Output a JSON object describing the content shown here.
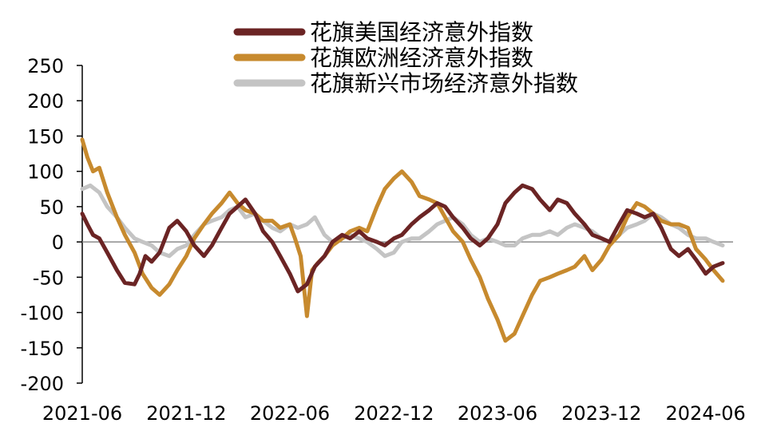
{
  "chart_data": {
    "type": "line",
    "title": "",
    "xlabel": "",
    "ylabel": "",
    "ylim": [
      -200,
      250
    ],
    "yticks": [
      250,
      200,
      150,
      100,
      50,
      0,
      -50,
      -100,
      -150,
      -200
    ],
    "xlim": [
      "2021-06-01",
      "2024-07-15"
    ],
    "xticks": [
      "2021-06",
      "2021-12",
      "2022-06",
      "2022-12",
      "2023-06",
      "2023-12",
      "2024-06"
    ],
    "grid": false,
    "legend": "top-center",
    "series": [
      {
        "name": "花旗美国经济意外指数",
        "color": "#6b2424",
        "points": [
          [
            "2021-06-01",
            40
          ],
          [
            "2021-06-10",
            25
          ],
          [
            "2021-06-20",
            10
          ],
          [
            "2021-07-01",
            5
          ],
          [
            "2021-07-15",
            -15
          ],
          [
            "2021-08-01",
            -40
          ],
          [
            "2021-08-15",
            -58
          ],
          [
            "2021-09-01",
            -60
          ],
          [
            "2021-09-10",
            -45
          ],
          [
            "2021-09-20",
            -20
          ],
          [
            "2021-10-01",
            -28
          ],
          [
            "2021-10-15",
            -15
          ],
          [
            "2021-11-01",
            20
          ],
          [
            "2021-11-15",
            30
          ],
          [
            "2021-12-01",
            15
          ],
          [
            "2021-12-15",
            -5
          ],
          [
            "2022-01-01",
            -20
          ],
          [
            "2022-01-15",
            -5
          ],
          [
            "2022-02-01",
            20
          ],
          [
            "2022-02-15",
            40
          ],
          [
            "2022-03-01",
            50
          ],
          [
            "2022-03-15",
            60
          ],
          [
            "2022-04-01",
            40
          ],
          [
            "2022-04-15",
            15
          ],
          [
            "2022-05-01",
            0
          ],
          [
            "2022-05-15",
            -20
          ],
          [
            "2022-06-01",
            -45
          ],
          [
            "2022-06-15",
            -70
          ],
          [
            "2022-07-01",
            -60
          ],
          [
            "2022-07-15",
            -35
          ],
          [
            "2022-08-01",
            -20
          ],
          [
            "2022-08-15",
            0
          ],
          [
            "2022-09-01",
            10
          ],
          [
            "2022-09-15",
            5
          ],
          [
            "2022-10-01",
            15
          ],
          [
            "2022-10-15",
            5
          ],
          [
            "2022-11-01",
            0
          ],
          [
            "2022-11-15",
            -5
          ],
          [
            "2022-12-01",
            5
          ],
          [
            "2022-12-15",
            10
          ],
          [
            "2023-01-01",
            25
          ],
          [
            "2023-01-15",
            35
          ],
          [
            "2023-02-01",
            45
          ],
          [
            "2023-02-15",
            55
          ],
          [
            "2023-03-01",
            50
          ],
          [
            "2023-03-15",
            35
          ],
          [
            "2023-04-01",
            20
          ],
          [
            "2023-04-15",
            5
          ],
          [
            "2023-05-01",
            -5
          ],
          [
            "2023-05-15",
            5
          ],
          [
            "2023-06-01",
            25
          ],
          [
            "2023-06-15",
            55
          ],
          [
            "2023-07-01",
            70
          ],
          [
            "2023-07-15",
            80
          ],
          [
            "2023-08-01",
            75
          ],
          [
            "2023-08-15",
            60
          ],
          [
            "2023-09-01",
            45
          ],
          [
            "2023-09-15",
            60
          ],
          [
            "2023-10-01",
            55
          ],
          [
            "2023-10-15",
            40
          ],
          [
            "2023-11-01",
            25
          ],
          [
            "2023-11-15",
            10
          ],
          [
            "2023-12-01",
            5
          ],
          [
            "2023-12-15",
            0
          ],
          [
            "2024-01-01",
            25
          ],
          [
            "2024-01-15",
            45
          ],
          [
            "2024-02-01",
            40
          ],
          [
            "2024-02-15",
            35
          ],
          [
            "2024-03-01",
            40
          ],
          [
            "2024-03-15",
            20
          ],
          [
            "2024-04-01",
            -10
          ],
          [
            "2024-04-15",
            -20
          ],
          [
            "2024-05-01",
            -10
          ],
          [
            "2024-05-15",
            -25
          ],
          [
            "2024-06-01",
            -45
          ],
          [
            "2024-06-15",
            -35
          ],
          [
            "2024-07-01",
            -30
          ]
        ]
      },
      {
        "name": "花旗欧洲经济意外指数",
        "color": "#c78a2e",
        "points": [
          [
            "2021-06-01",
            145
          ],
          [
            "2021-06-10",
            120
          ],
          [
            "2021-06-20",
            100
          ],
          [
            "2021-07-01",
            105
          ],
          [
            "2021-07-15",
            70
          ],
          [
            "2021-08-01",
            35
          ],
          [
            "2021-08-15",
            10
          ],
          [
            "2021-09-01",
            -15
          ],
          [
            "2021-09-15",
            -45
          ],
          [
            "2021-10-01",
            -65
          ],
          [
            "2021-10-15",
            -75
          ],
          [
            "2021-11-01",
            -60
          ],
          [
            "2021-11-15",
            -40
          ],
          [
            "2021-12-01",
            -20
          ],
          [
            "2021-12-15",
            5
          ],
          [
            "2022-01-01",
            25
          ],
          [
            "2022-01-15",
            40
          ],
          [
            "2022-02-01",
            55
          ],
          [
            "2022-02-15",
            70
          ],
          [
            "2022-03-01",
            55
          ],
          [
            "2022-03-15",
            45
          ],
          [
            "2022-04-01",
            40
          ],
          [
            "2022-04-15",
            30
          ],
          [
            "2022-05-01",
            30
          ],
          [
            "2022-05-15",
            20
          ],
          [
            "2022-06-01",
            25
          ],
          [
            "2022-06-10",
            5
          ],
          [
            "2022-06-20",
            -20
          ],
          [
            "2022-07-01",
            -105
          ],
          [
            "2022-07-10",
            -40
          ],
          [
            "2022-07-20",
            -30
          ],
          [
            "2022-08-01",
            -20
          ],
          [
            "2022-08-15",
            -5
          ],
          [
            "2022-09-01",
            5
          ],
          [
            "2022-09-15",
            15
          ],
          [
            "2022-10-01",
            20
          ],
          [
            "2022-10-15",
            15
          ],
          [
            "2022-11-01",
            50
          ],
          [
            "2022-11-15",
            75
          ],
          [
            "2022-12-01",
            90
          ],
          [
            "2022-12-15",
            100
          ],
          [
            "2023-01-01",
            85
          ],
          [
            "2023-01-15",
            65
          ],
          [
            "2023-02-01",
            60
          ],
          [
            "2023-02-15",
            55
          ],
          [
            "2023-03-01",
            35
          ],
          [
            "2023-03-15",
            15
          ],
          [
            "2023-04-01",
            0
          ],
          [
            "2023-04-15",
            -25
          ],
          [
            "2023-05-01",
            -50
          ],
          [
            "2023-05-15",
            -80
          ],
          [
            "2023-06-01",
            -110
          ],
          [
            "2023-06-15",
            -140
          ],
          [
            "2023-07-01",
            -130
          ],
          [
            "2023-07-15",
            -105
          ],
          [
            "2023-08-01",
            -75
          ],
          [
            "2023-08-15",
            -55
          ],
          [
            "2023-09-01",
            -50
          ],
          [
            "2023-09-15",
            -45
          ],
          [
            "2023-10-01",
            -40
          ],
          [
            "2023-10-15",
            -35
          ],
          [
            "2023-11-01",
            -20
          ],
          [
            "2023-11-15",
            -40
          ],
          [
            "2023-12-01",
            -25
          ],
          [
            "2023-12-15",
            -5
          ],
          [
            "2024-01-01",
            10
          ],
          [
            "2024-01-15",
            35
          ],
          [
            "2024-02-01",
            55
          ],
          [
            "2024-02-15",
            50
          ],
          [
            "2024-03-01",
            40
          ],
          [
            "2024-03-15",
            30
          ],
          [
            "2024-04-01",
            25
          ],
          [
            "2024-04-15",
            25
          ],
          [
            "2024-05-01",
            20
          ],
          [
            "2024-05-15",
            -10
          ],
          [
            "2024-06-01",
            -25
          ],
          [
            "2024-06-15",
            -40
          ],
          [
            "2024-07-01",
            -55
          ]
        ]
      },
      {
        "name": "花旗新兴市场经济意外指数",
        "color": "#c4c4c4",
        "points": [
          [
            "2021-06-01",
            75
          ],
          [
            "2021-06-15",
            80
          ],
          [
            "2021-07-01",
            70
          ],
          [
            "2021-07-15",
            50
          ],
          [
            "2021-08-01",
            35
          ],
          [
            "2021-08-15",
            20
          ],
          [
            "2021-09-01",
            5
          ],
          [
            "2021-09-15",
            0
          ],
          [
            "2021-10-01",
            -5
          ],
          [
            "2021-10-15",
            -15
          ],
          [
            "2021-11-01",
            -20
          ],
          [
            "2021-11-15",
            -10
          ],
          [
            "2021-12-01",
            -5
          ],
          [
            "2021-12-15",
            10
          ],
          [
            "2022-01-01",
            25
          ],
          [
            "2022-01-15",
            30
          ],
          [
            "2022-02-01",
            35
          ],
          [
            "2022-02-15",
            45
          ],
          [
            "2022-03-01",
            50
          ],
          [
            "2022-03-15",
            35
          ],
          [
            "2022-04-01",
            40
          ],
          [
            "2022-04-15",
            30
          ],
          [
            "2022-05-01",
            20
          ],
          [
            "2022-05-15",
            15
          ],
          [
            "2022-06-01",
            25
          ],
          [
            "2022-06-15",
            20
          ],
          [
            "2022-07-01",
            25
          ],
          [
            "2022-07-15",
            35
          ],
          [
            "2022-08-01",
            10
          ],
          [
            "2022-08-15",
            0
          ],
          [
            "2022-09-01",
            5
          ],
          [
            "2022-09-15",
            10
          ],
          [
            "2022-10-01",
            5
          ],
          [
            "2022-10-15",
            0
          ],
          [
            "2022-11-01",
            -10
          ],
          [
            "2022-11-15",
            -20
          ],
          [
            "2022-12-01",
            -15
          ],
          [
            "2022-12-15",
            0
          ],
          [
            "2023-01-01",
            5
          ],
          [
            "2023-01-15",
            5
          ],
          [
            "2023-02-01",
            15
          ],
          [
            "2023-02-15",
            25
          ],
          [
            "2023-03-01",
            30
          ],
          [
            "2023-03-15",
            35
          ],
          [
            "2023-04-01",
            25
          ],
          [
            "2023-04-15",
            10
          ],
          [
            "2023-05-01",
            0
          ],
          [
            "2023-05-15",
            5
          ],
          [
            "2023-06-01",
            0
          ],
          [
            "2023-06-15",
            -5
          ],
          [
            "2023-07-01",
            -5
          ],
          [
            "2023-07-15",
            5
          ],
          [
            "2023-08-01",
            10
          ],
          [
            "2023-08-15",
            10
          ],
          [
            "2023-09-01",
            15
          ],
          [
            "2023-09-15",
            10
          ],
          [
            "2023-10-01",
            20
          ],
          [
            "2023-10-15",
            25
          ],
          [
            "2023-11-01",
            20
          ],
          [
            "2023-11-15",
            15
          ],
          [
            "2023-12-01",
            5
          ],
          [
            "2023-12-15",
            0
          ],
          [
            "2024-01-01",
            10
          ],
          [
            "2024-01-15",
            20
          ],
          [
            "2024-02-01",
            25
          ],
          [
            "2024-02-15",
            30
          ],
          [
            "2024-03-01",
            40
          ],
          [
            "2024-03-15",
            35
          ],
          [
            "2024-04-01",
            25
          ],
          [
            "2024-04-15",
            20
          ],
          [
            "2024-05-01",
            10
          ],
          [
            "2024-05-15",
            5
          ],
          [
            "2024-06-01",
            5
          ],
          [
            "2024-06-15",
            0
          ],
          [
            "2024-07-01",
            -5
          ]
        ]
      }
    ]
  }
}
